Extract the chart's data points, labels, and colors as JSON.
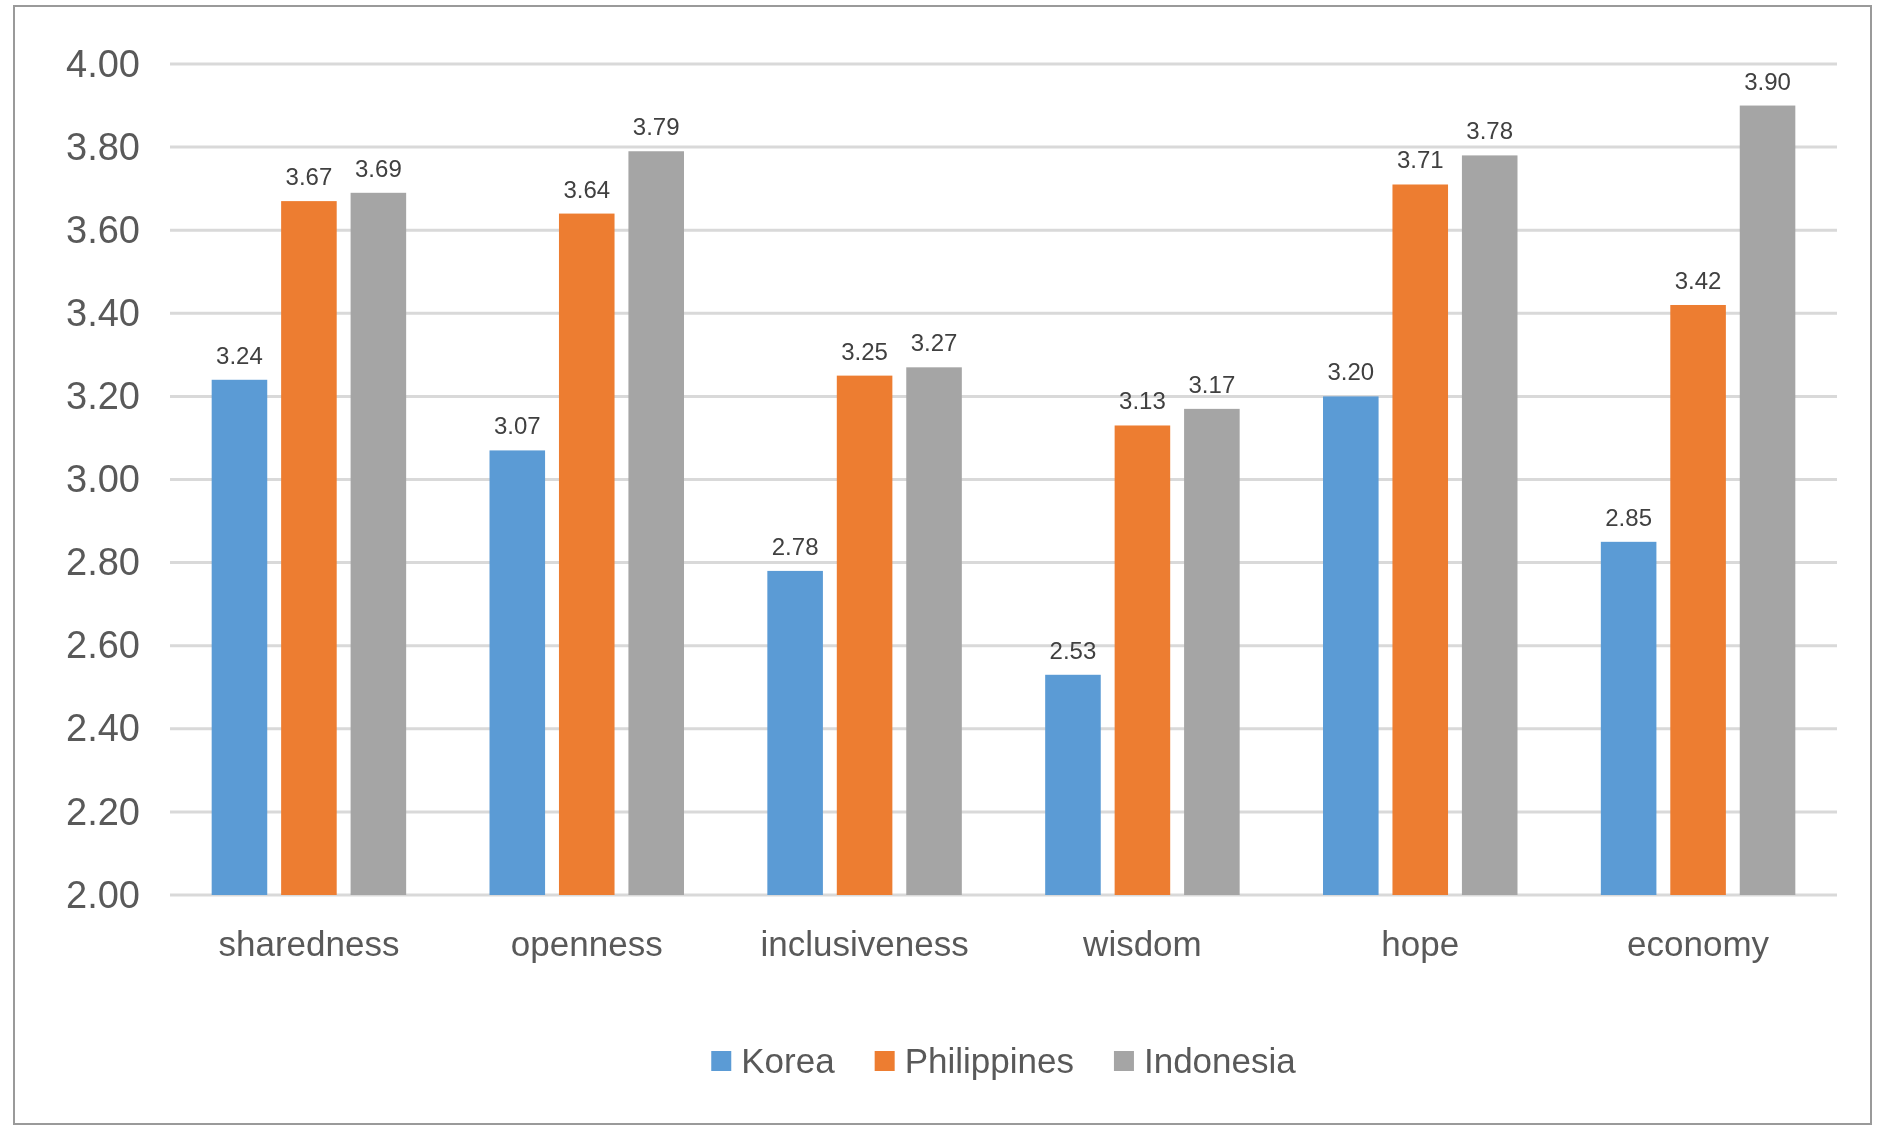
{
  "chart_data": {
    "type": "bar",
    "categories": [
      "sharedness",
      "openness",
      "inclusiveness",
      "wisdom",
      "hope",
      "economy"
    ],
    "series": [
      {
        "name": "Korea",
        "color": "#5b9bd5",
        "values": [
          3.24,
          3.07,
          2.78,
          2.53,
          3.2,
          2.85
        ],
        "value_labels": [
          "3.24",
          "3.07",
          "2.78",
          "2.53",
          "3.20",
          "2.85"
        ]
      },
      {
        "name": "Philippines",
        "color": "#ed7d31",
        "values": [
          3.67,
          3.64,
          3.25,
          3.13,
          3.71,
          3.42
        ],
        "value_labels": [
          "3.67",
          "3.64",
          "3.25",
          "3.13",
          "3.71",
          "3.42"
        ]
      },
      {
        "name": "Indonesia",
        "color": "#a5a5a5",
        "values": [
          3.69,
          3.79,
          3.27,
          3.17,
          3.78,
          3.9
        ],
        "value_labels": [
          "3.69",
          "3.79",
          "3.27",
          "3.17",
          "3.78",
          "3.90"
        ]
      }
    ],
    "ylim": [
      2,
      4
    ],
    "yticks": [
      {
        "value": 2,
        "label": "2.00"
      },
      {
        "value": 2.2,
        "label": "2.20"
      },
      {
        "value": 2.4,
        "label": "2.40"
      },
      {
        "value": 2.6,
        "label": "2.60"
      },
      {
        "value": 2.8,
        "label": "2.80"
      },
      {
        "value": 3,
        "label": "3.00"
      },
      {
        "value": 3.2,
        "label": "3.20"
      },
      {
        "value": 3.4,
        "label": "3.40"
      },
      {
        "value": 3.6,
        "label": "3.60"
      },
      {
        "value": 3.8,
        "label": "3.80"
      },
      {
        "value": 4,
        "label": "4.00"
      }
    ],
    "grid": "y",
    "legend": "bottom"
  }
}
